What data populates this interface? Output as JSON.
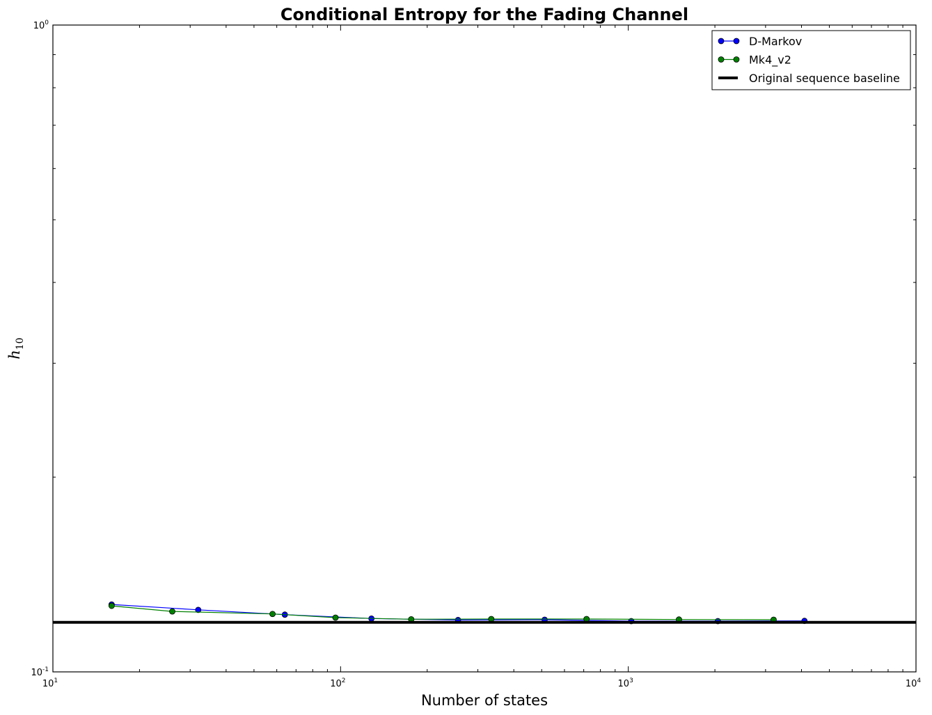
{
  "chart_data": {
    "type": "line",
    "title": "Conditional Entropy for the Fading Channel",
    "xlabel": "Number of states",
    "ylabel": {
      "base": "h",
      "subscript": "10"
    },
    "xscale": "log",
    "yscale": "log",
    "xlim": [
      10,
      10000
    ],
    "ylim": [
      0.1,
      1
    ],
    "x_ticks": [
      {
        "value": 10,
        "base": "10",
        "exp": "1"
      },
      {
        "value": 100,
        "base": "10",
        "exp": "2"
      },
      {
        "value": 1000,
        "base": "10",
        "exp": "3"
      },
      {
        "value": 10000,
        "base": "10",
        "exp": "4"
      }
    ],
    "y_ticks": [
      {
        "value": 0.1,
        "base": "10",
        "exp": "-1"
      },
      {
        "value": 1,
        "base": "10",
        "exp": "0"
      }
    ],
    "grid": false,
    "legend_position": "top-right",
    "series": [
      {
        "name": "D-Markov",
        "color": "#0000ff",
        "marker": "circle",
        "x": [
          16,
          32,
          64,
          128,
          256,
          512,
          1024,
          2048,
          4096
        ],
        "y": [
          0.1271,
          0.1247,
          0.1226,
          0.1209,
          0.1203,
          0.1204,
          0.1198,
          0.1198,
          0.1199
        ]
      },
      {
        "name": "Mk4_v2",
        "color": "#008000",
        "marker": "circle",
        "x": [
          16,
          26,
          58,
          96,
          176,
          334,
          716,
          1500,
          3200
        ],
        "y": [
          0.1265,
          0.124,
          0.1229,
          0.1213,
          0.1206,
          0.1207,
          0.1207,
          0.1205,
          0.1204
        ]
      }
    ],
    "baseline": {
      "name": "Original sequence baseline",
      "color": "#000000",
      "y": 0.1193
    }
  }
}
